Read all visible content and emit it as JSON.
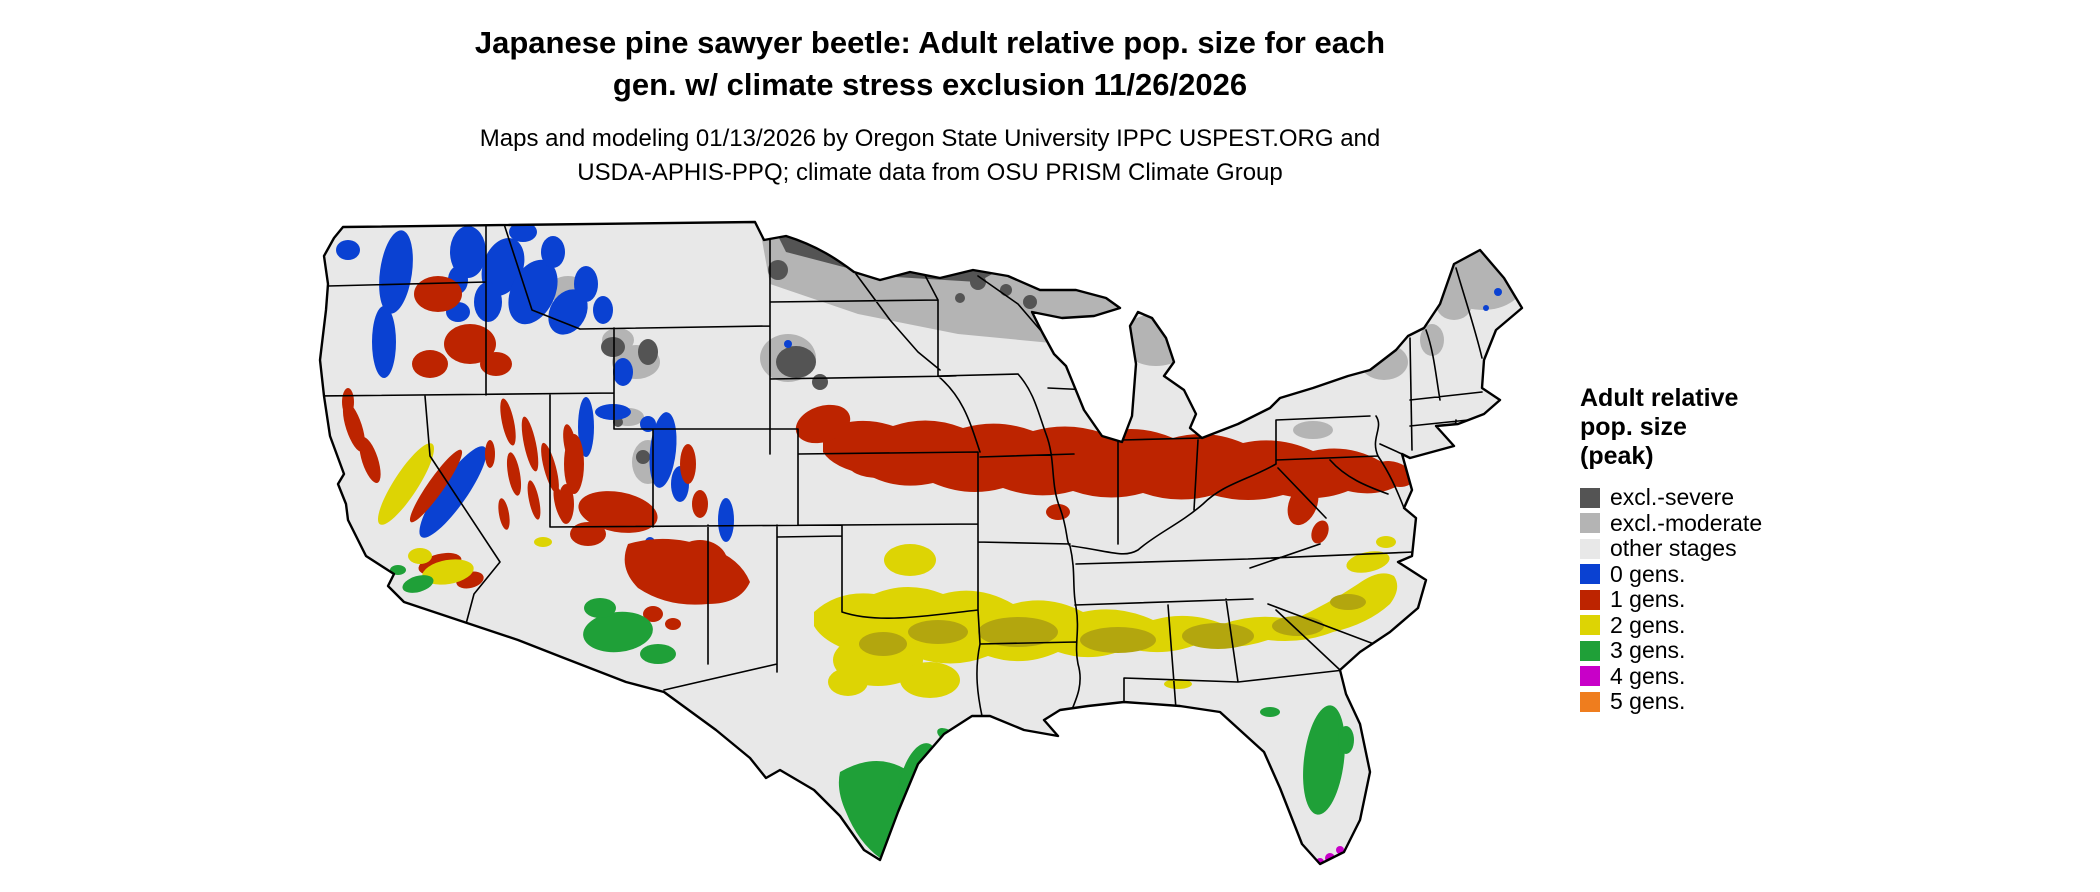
{
  "title": {
    "line1": "Japanese pine sawyer beetle: Adult relative pop. size for each",
    "line2": "gen. w/ climate stress exclusion 11/26/2026"
  },
  "subtitle": {
    "line1": "Maps and modeling 01/13/2026 by Oregon State University IPPC USPEST.ORG and",
    "line2": "USDA-APHIS-PPQ; climate data from OSU PRISM Climate Group"
  },
  "legend": {
    "title_lines": [
      "Adult relative",
      "pop. size",
      "(peak)"
    ],
    "items": [
      {
        "label": "excl.-severe",
        "color": "#545454",
        "key": "sev"
      },
      {
        "label": "excl.-moderate",
        "color": "#b4b4b4",
        "key": "mod"
      },
      {
        "label": "other stages",
        "color": "#e8e8e8",
        "key": "other"
      },
      {
        "label": "0 gens.",
        "color": "#0a41d2",
        "key": "g0"
      },
      {
        "label": "1 gens.",
        "color": "#bd2400",
        "key": "g1"
      },
      {
        "label": "2 gens.",
        "color": "#ddd404",
        "key": "g2"
      },
      {
        "label": "3 gens.",
        "color": "#1fa038",
        "key": "g3"
      },
      {
        "label": "4 gens.",
        "color": "#c800c8",
        "key": "g4"
      },
      {
        "label": "5 gens.",
        "color": "#ef7d1e",
        "key": "g5"
      }
    ]
  }
}
